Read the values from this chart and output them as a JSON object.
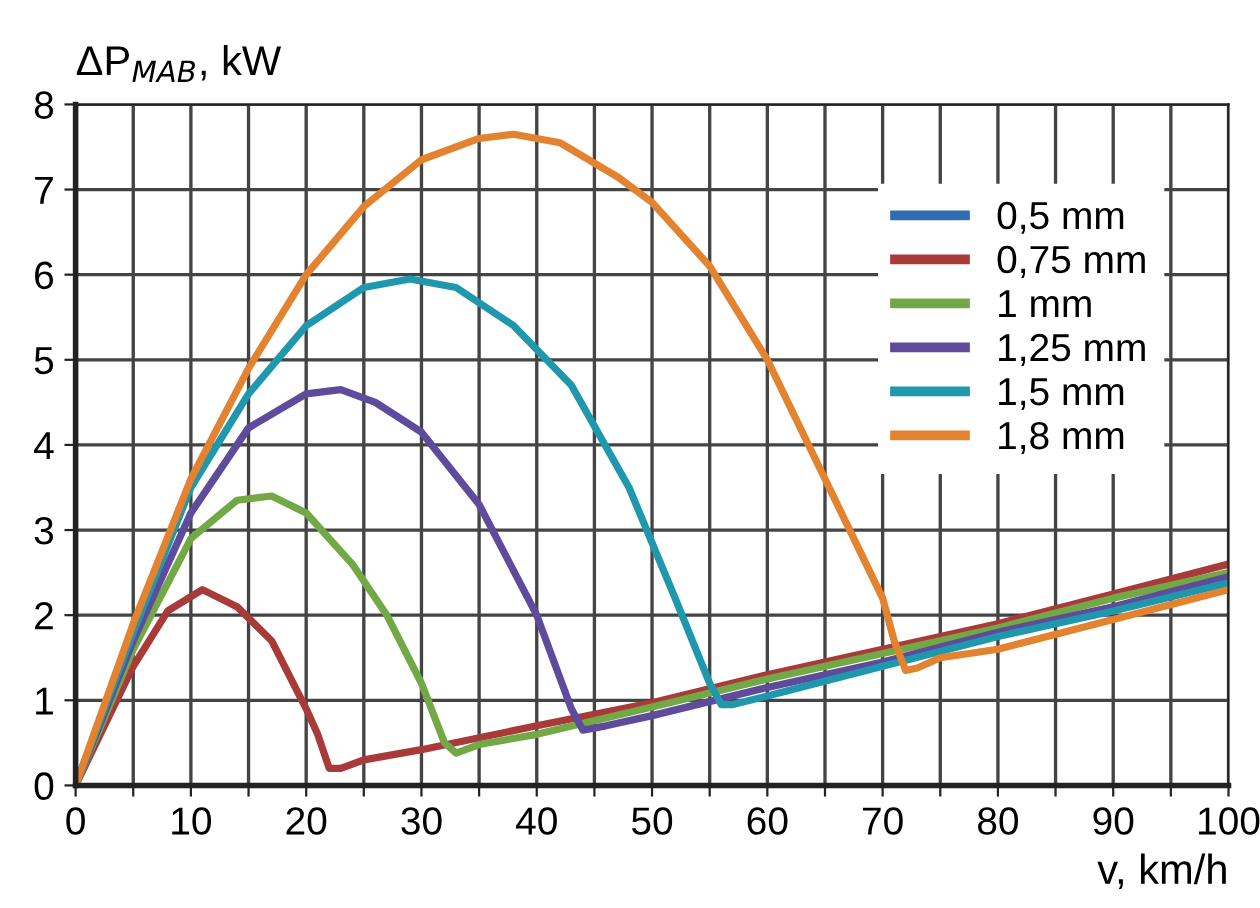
{
  "chart_data": {
    "type": "line",
    "xlabel": "v, km/h",
    "ylabel": "ΔP$_{MAB}$, kW",
    "xlim": [
      0,
      100
    ],
    "ylim": [
      0,
      8
    ],
    "xticks": [
      0,
      {
        "value": 5,
        "label": null
      },
      10,
      {
        "value": 15,
        "label": null
      },
      20,
      {
        "value": 25,
        "label": null
      },
      30,
      {
        "value": 35,
        "label": null
      },
      40,
      {
        "value": 45,
        "label": null
      },
      50,
      {
        "value": 55,
        "label": null
      },
      60,
      {
        "value": 65,
        "label": null
      },
      70,
      {
        "value": 75,
        "label": null
      },
      80,
      {
        "value": 85,
        "label": null
      },
      90,
      {
        "value": 95,
        "label": null
      },
      100
    ],
    "yticks": [
      0,
      1,
      2,
      3,
      4,
      5,
      6,
      7,
      8
    ],
    "grid": true,
    "legend": "top right",
    "marker": "none",
    "line_style": "solid",
    "series": [
      {
        "name": "0,5 mm",
        "color": "#2e6db4"
      },
      {
        "name": "0,75 mm",
        "color": "#a83a3a",
        "x": [
          0,
          5,
          8,
          11,
          14,
          17,
          20,
          21,
          22,
          23,
          25,
          30,
          40,
          50,
          60,
          70,
          80,
          90,
          100
        ],
        "values": [
          0,
          1.4,
          2.05,
          2.3,
          2.1,
          1.7,
          0.9,
          0.6,
          0.2,
          0.2,
          0.3,
          0.42,
          0.7,
          0.97,
          1.3,
          1.6,
          1.9,
          2.25,
          2.6
        ]
      },
      {
        "name": "1 mm",
        "color": "#72a845",
        "x": [
          0,
          5,
          10,
          14,
          17,
          20,
          24,
          27,
          30,
          32,
          33,
          35,
          40,
          50,
          60,
          70,
          80,
          90,
          100
        ],
        "values": [
          0,
          1.6,
          2.9,
          3.35,
          3.4,
          3.2,
          2.6,
          2.0,
          1.2,
          0.5,
          0.38,
          0.48,
          0.6,
          0.92,
          1.25,
          1.55,
          1.85,
          2.2,
          2.5
        ]
      },
      {
        "name": "1,25 mm",
        "color": "#5e4b9c",
        "x": [
          0,
          5,
          10,
          15,
          20,
          23,
          26,
          30,
          35,
          40,
          43,
          44,
          46,
          50,
          60,
          70,
          80,
          90,
          100
        ],
        "values": [
          0,
          1.7,
          3.2,
          4.2,
          4.6,
          4.65,
          4.5,
          4.15,
          3.3,
          2.0,
          0.9,
          0.65,
          0.7,
          0.82,
          1.15,
          1.45,
          1.8,
          2.1,
          2.45
        ]
      },
      {
        "name": "1,5 mm",
        "color": "#1f97ac",
        "x": [
          0,
          5,
          10,
          15,
          20,
          25,
          29,
          33,
          38,
          43,
          48,
          52,
          55,
          56,
          57,
          60,
          70,
          80,
          90,
          100
        ],
        "values": [
          0,
          1.8,
          3.5,
          4.6,
          5.4,
          5.85,
          5.95,
          5.85,
          5.4,
          4.7,
          3.5,
          2.2,
          1.2,
          0.95,
          0.95,
          1.05,
          1.4,
          1.75,
          2.05,
          2.38
        ]
      },
      {
        "name": "1,8 mm",
        "color": "#e3822f",
        "x": [
          0,
          5,
          10,
          15,
          20,
          25,
          30,
          35,
          38,
          42,
          47,
          50,
          55,
          60,
          65,
          70,
          71,
          72,
          73,
          75,
          80,
          90,
          100
        ],
        "values": [
          0,
          1.9,
          3.6,
          4.9,
          6.0,
          6.8,
          7.35,
          7.6,
          7.65,
          7.55,
          7.15,
          6.85,
          6.1,
          5.0,
          3.6,
          2.2,
          1.7,
          1.35,
          1.38,
          1.5,
          1.6,
          1.95,
          2.3
        ]
      }
    ]
  }
}
